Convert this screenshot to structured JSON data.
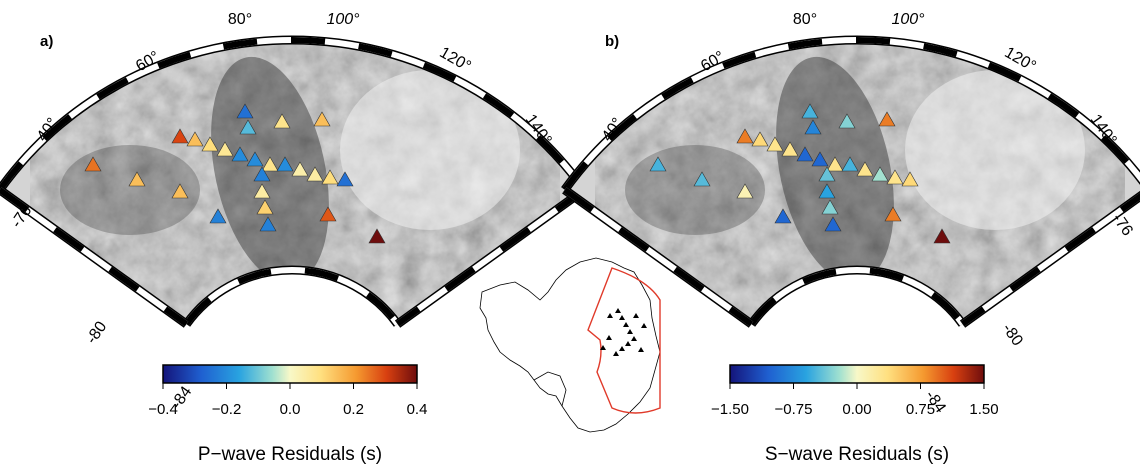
{
  "panels": [
    {
      "label": "a)",
      "longitudes": [
        "40°",
        "60°",
        "80°",
        "100°",
        "120°",
        "140°"
      ],
      "latitudes": [
        "-76",
        "-80",
        "-84"
      ],
      "stations": [
        0.25,
        0.15,
        0.15,
        0.3,
        0.15,
        0.1,
        0.07,
        -0.25,
        -0.12,
        -0.2,
        -0.2,
        0.08,
        -0.2,
        0.04,
        0.05,
        0.1,
        -0.25,
        -0.22,
        0.05,
        0.12,
        -0.22,
        -0.22,
        0.08,
        0.15,
        0.28,
        0.4
      ],
      "colorbar": {
        "ticks": [
          {
            "value": -0.4,
            "label": "−0.4"
          },
          {
            "value": -0.2,
            "label": "−0.2"
          },
          {
            "value": 0.0,
            "label": "0.0"
          },
          {
            "value": 0.2,
            "label": "0.2"
          },
          {
            "value": 0.4,
            "label": "0.4"
          }
        ],
        "title": "P−wave Residuals (s)"
      }
    },
    {
      "label": "b)",
      "longitudes": [
        "40°",
        "60°",
        "80°",
        "100°",
        "120°",
        "140°"
      ],
      "latitudes": [
        "-76",
        "-80",
        "-84"
      ],
      "stations": [
        -0.5,
        -0.45,
        0.1,
        0.9,
        0.4,
        0.3,
        0.3,
        -0.5,
        -0.8,
        -1.0,
        -1.0,
        0.3,
        -0.5,
        0.3,
        -0.2,
        0.3,
        0.4,
        -0.4,
        -0.6,
        -0.3,
        -1.0,
        -1.0,
        -0.3,
        0.9,
        0.9,
        1.5
      ],
      "colorbar": {
        "ticks": [
          {
            "value": -1.5,
            "label": "−1.50"
          },
          {
            "value": -0.75,
            "label": "−0.75"
          },
          {
            "value": 0.0,
            "label": "0.00"
          },
          {
            "value": 0.75,
            "label": "0.75"
          },
          {
            "value": 1.5,
            "label": "1.50"
          }
        ],
        "title": "S−wave Residuals (s)"
      }
    }
  ]
}
